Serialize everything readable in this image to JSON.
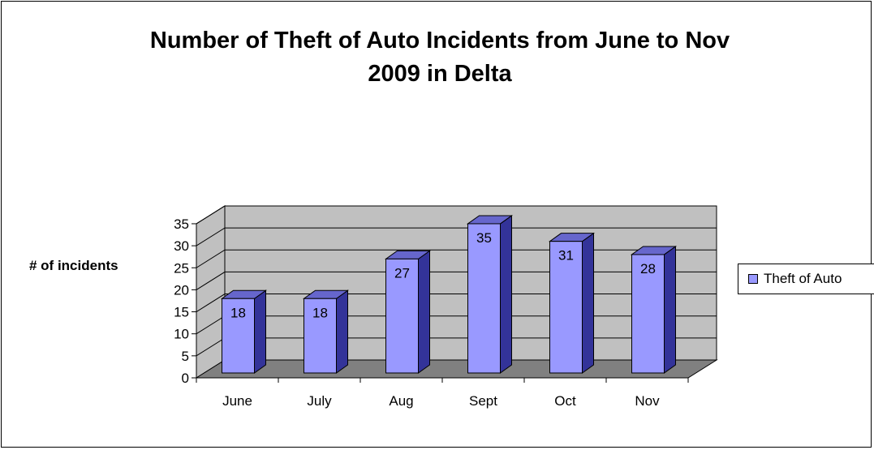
{
  "chart_data": {
    "type": "bar",
    "title": "Number of Theft of Auto Incidents from June to Nov 2009 in Delta",
    "title_lines": [
      "Number of Theft of Auto Incidents from June to Nov",
      "2009 in Delta"
    ],
    "xlabel": "",
    "ylabel": "# of incidents",
    "categories": [
      "June",
      "July",
      "Aug",
      "Sept",
      "Oct",
      "Nov"
    ],
    "series": [
      {
        "name": "Theft of Auto",
        "values": [
          18,
          18,
          27,
          35,
          31,
          28
        ]
      }
    ],
    "ylim": [
      0,
      35
    ],
    "yticks": [
      "0",
      "5",
      "10",
      "15",
      "20",
      "25",
      "30",
      "35"
    ],
    "data_labels": [
      "18",
      "18",
      "27",
      "35",
      "31",
      "28"
    ],
    "grid": true,
    "legend_position": "right",
    "style": "3d-column",
    "colors": {
      "bar_front": "#9999ff",
      "bar_top": "#6666cc",
      "bar_side": "#333399",
      "wall": "#c0c0c0",
      "floor": "#808080"
    }
  }
}
